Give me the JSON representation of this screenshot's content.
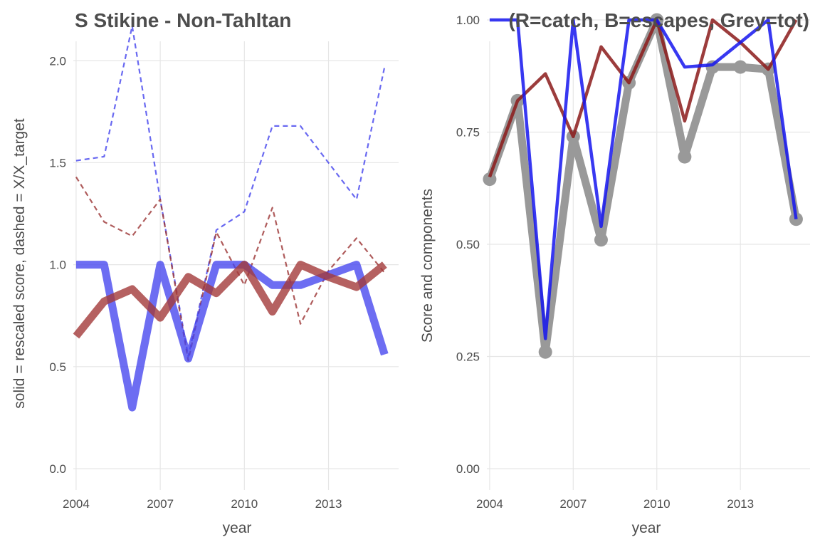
{
  "chart_data": [
    {
      "type": "line",
      "title": "S Stikine - Non-Tahltan",
      "xlabel": "year",
      "ylabel": "solid = rescaled score, dashed = X/X_target",
      "xlim": [
        2003.9,
        2015.5
      ],
      "ylim": [
        0,
        2.2
      ],
      "xticks": [
        2004,
        2007,
        2010,
        2013
      ],
      "yticks": [
        0,
        0.5,
        1,
        1.5,
        2
      ],
      "ytick_labels": [
        "0.0",
        "0.5",
        "1.0",
        "1.5",
        "2.0"
      ],
      "grid": true,
      "x": [
        2004,
        2005,
        2006,
        2007,
        2008,
        2009,
        2010,
        2011,
        2012,
        2013,
        2014,
        2015
      ],
      "series": [
        {
          "style": "dashed",
          "color": "#4444ee",
          "values": [
            1.51,
            1.53,
            2.17,
            1.32,
            0.55,
            1.17,
            1.26,
            1.68,
            1.68,
            1.5,
            1.32,
            1.97
          ]
        },
        {
          "style": "dashed",
          "color": "#9b3333",
          "values": [
            1.43,
            1.21,
            1.14,
            1.32,
            0.53,
            1.16,
            0.9,
            1.28,
            0.71,
            0.97,
            1.13,
            0.96
          ]
        },
        {
          "style": "solid",
          "color": "#4444ee",
          "values": [
            1.0,
            1.0,
            0.3,
            1.0,
            0.54,
            1.0,
            1.0,
            0.9,
            0.9,
            0.95,
            1.0,
            0.56
          ]
        },
        {
          "style": "solid",
          "color": "#a33a3a",
          "values": [
            0.65,
            0.82,
            0.88,
            0.74,
            0.94,
            0.86,
            1.0,
            0.77,
            1.0,
            0.94,
            0.89,
            1.0
          ]
        }
      ]
    },
    {
      "type": "line",
      "title": "(R=catch, B=escapes, Grey=tot)",
      "xlabel": "year",
      "ylabel": "Score and components",
      "xlim": [
        2003.9,
        2015.5
      ],
      "ylim": [
        0,
        1
      ],
      "xticks": [
        2004,
        2007,
        2010,
        2013
      ],
      "yticks": [
        0,
        0.25,
        0.5,
        0.75,
        1
      ],
      "ytick_labels": [
        "0.00",
        "0.25",
        "0.50",
        "0.75",
        "1.00"
      ],
      "grid": true,
      "x": [
        2004,
        2005,
        2006,
        2007,
        2008,
        2009,
        2010,
        2011,
        2012,
        2013,
        2014,
        2015
      ],
      "series": [
        {
          "style": "thick-points",
          "color": "#999999",
          "values": [
            0.645,
            0.82,
            0.26,
            0.74,
            0.51,
            0.86,
            1.0,
            0.695,
            0.895,
            0.895,
            0.89,
            0.556
          ]
        },
        {
          "style": "solid",
          "color": "#8b1a1a",
          "values": [
            0.65,
            0.82,
            0.88,
            0.74,
            0.94,
            0.86,
            1.0,
            0.775,
            1.0,
            0.95,
            0.89,
            1.0
          ]
        },
        {
          "style": "solid",
          "color": "#1515ee",
          "values": [
            1.0,
            1.0,
            0.29,
            1.0,
            0.54,
            1.0,
            1.0,
            0.895,
            0.9,
            0.95,
            1.0,
            0.556
          ]
        }
      ]
    }
  ]
}
